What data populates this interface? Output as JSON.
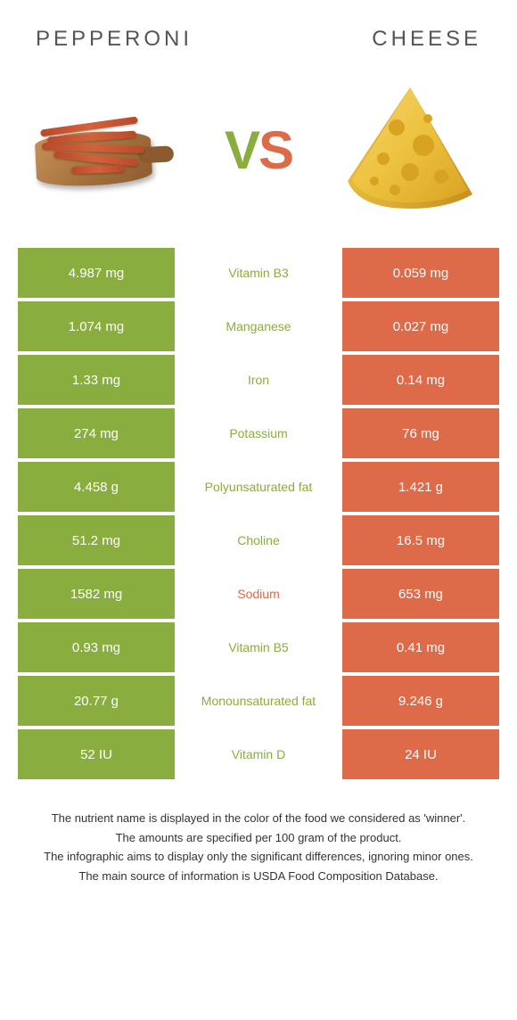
{
  "header": {
    "left_food": "PEPPERONI",
    "right_food": "CHEESE"
  },
  "colors": {
    "left": "#8aad3f",
    "right": "#dd6b4a",
    "background": "#ffffff"
  },
  "vs": {
    "v": "V",
    "s": "S"
  },
  "rows": [
    {
      "left": "4.987 mg",
      "label": "Vitamin B3",
      "right": "0.059 mg",
      "winner": "left"
    },
    {
      "left": "1.074 mg",
      "label": "Manganese",
      "right": "0.027 mg",
      "winner": "left"
    },
    {
      "left": "1.33 mg",
      "label": "Iron",
      "right": "0.14 mg",
      "winner": "left"
    },
    {
      "left": "274 mg",
      "label": "Potassium",
      "right": "76 mg",
      "winner": "left"
    },
    {
      "left": "4.458 g",
      "label": "Polyunsaturated fat",
      "right": "1.421 g",
      "winner": "left"
    },
    {
      "left": "51.2 mg",
      "label": "Choline",
      "right": "16.5 mg",
      "winner": "left"
    },
    {
      "left": "1582 mg",
      "label": "Sodium",
      "right": "653 mg",
      "winner": "right"
    },
    {
      "left": "0.93 mg",
      "label": "Vitamin B5",
      "right": "0.41 mg",
      "winner": "left"
    },
    {
      "left": "20.77 g",
      "label": "Monounsaturated fat",
      "right": "9.246 g",
      "winner": "left"
    },
    {
      "left": "52 IU",
      "label": "Vitamin D",
      "right": "24 IU",
      "winner": "left"
    }
  ],
  "footnotes": [
    "The nutrient name is displayed in the color of the food we considered as 'winner'.",
    "The amounts are specified per 100 gram of the product.",
    "The infographic aims to display only the significant differences, ignoring minor ones.",
    "The main source of information is USDA Food Composition Database."
  ]
}
